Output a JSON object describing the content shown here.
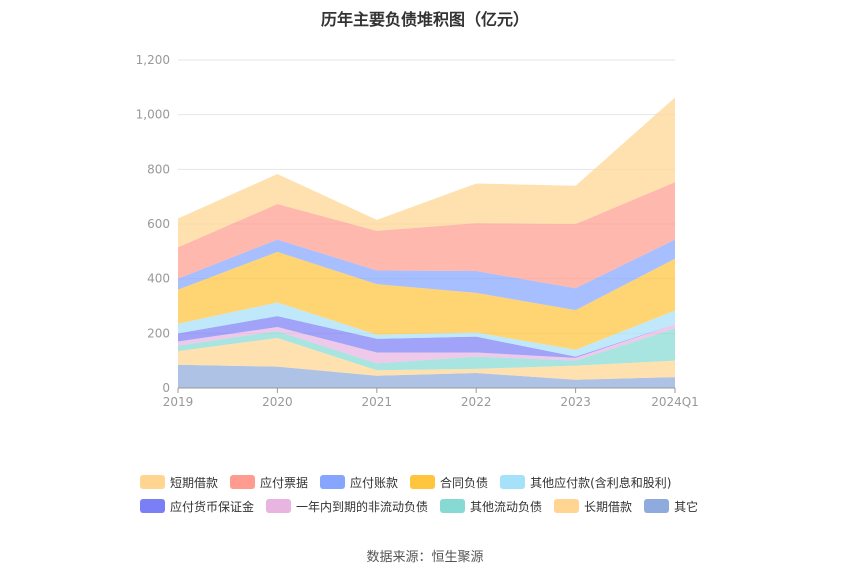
{
  "page": {
    "source_label": "数据来源：恒生聚源"
  },
  "chart_data": {
    "type": "area",
    "stacked": true,
    "title": "历年主要负债堆积图（亿元）",
    "xlabel": "",
    "ylabel": "",
    "ylim": [
      0,
      1200
    ],
    "yticks": [
      0,
      200,
      400,
      600,
      800,
      1000,
      1200
    ],
    "ytick_labels": [
      "0",
      "200",
      "400",
      "600",
      "800",
      "1,000",
      "1,200"
    ],
    "categories": [
      "2019",
      "2020",
      "2021",
      "2022",
      "2023",
      "2024Q1"
    ],
    "grid": true,
    "legend_position": "bottom",
    "series": [
      {
        "name": "其它",
        "color": "#8faadc",
        "values": [
          85,
          78,
          45,
          55,
          30,
          40
        ]
      },
      {
        "name": "长期借款",
        "color": "#ffd591",
        "values": [
          50,
          105,
          20,
          15,
          52,
          60
        ]
      },
      {
        "name": "其他流动负债",
        "color": "#87d9d4",
        "values": [
          20,
          25,
          25,
          45,
          18,
          118
        ]
      },
      {
        "name": "一年内到期的非流动负债",
        "color": "#e8b4e0",
        "values": [
          15,
          15,
          40,
          15,
          10,
          15
        ]
      },
      {
        "name": "应付货币保证金",
        "color": "#7b7ff5",
        "values": [
          30,
          40,
          50,
          58,
          5,
          0
        ]
      },
      {
        "name": "其他应付款(含利息和股利)",
        "color": "#a6e1fa",
        "values": [
          35,
          50,
          15,
          15,
          25,
          50
        ]
      },
      {
        "name": "合同负债",
        "color": "#ffc53d",
        "values": [
          125,
          185,
          185,
          145,
          145,
          190
        ]
      },
      {
        "name": "应付账款",
        "color": "#85a5ff",
        "values": [
          40,
          45,
          50,
          80,
          80,
          70
        ]
      },
      {
        "name": "应付票据",
        "color": "#ff9c8f",
        "values": [
          115,
          130,
          145,
          175,
          235,
          210
        ]
      },
      {
        "name": "短期借款",
        "color": "#ffd591",
        "values": [
          105,
          110,
          40,
          145,
          140,
          310
        ]
      }
    ],
    "legend_order": [
      "短期借款",
      "应付票据",
      "应付账款",
      "合同负债",
      "其他应付款(含利息和股利)",
      "应付货币保证金",
      "一年内到期的非流动负债",
      "其他流动负债",
      "长期借款",
      "其它"
    ]
  }
}
